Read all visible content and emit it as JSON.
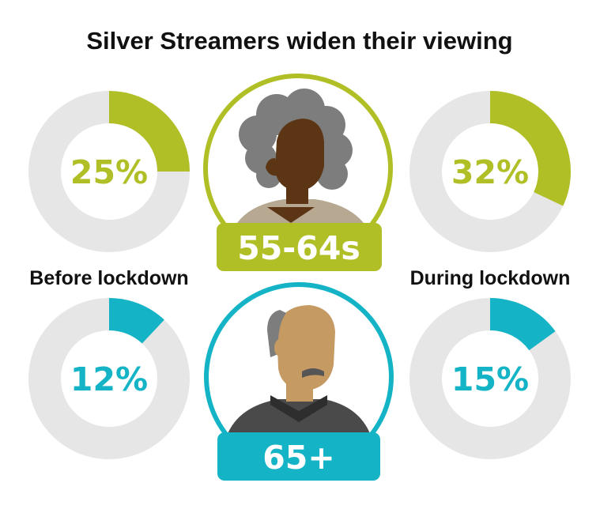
{
  "title": "Silver Streamers widen their viewing",
  "colors": {
    "green": "#b1bf26",
    "teal": "#14b4c6",
    "track": "#e6e6e6",
    "text": "#111111"
  },
  "captions": {
    "left": "Before lockdown",
    "right": "During lockdown"
  },
  "groups": [
    {
      "label": "55-64s",
      "icon": "elderly-woman-icon",
      "color": "green"
    },
    {
      "label": "65+",
      "icon": "elderly-man-icon",
      "color": "teal"
    }
  ],
  "chart_data": {
    "type": "pie",
    "variant": "donut",
    "categories": [
      "Before lockdown",
      "During lockdown"
    ],
    "series": [
      {
        "name": "55-64s",
        "values": [
          25,
          32
        ],
        "labels": [
          "25%",
          "32%"
        ],
        "color": "#b1bf26"
      },
      {
        "name": "65+",
        "values": [
          12,
          15
        ],
        "labels": [
          "12%",
          "15%"
        ],
        "color": "#14b4c6"
      }
    ],
    "unit": "%",
    "max": 100
  }
}
